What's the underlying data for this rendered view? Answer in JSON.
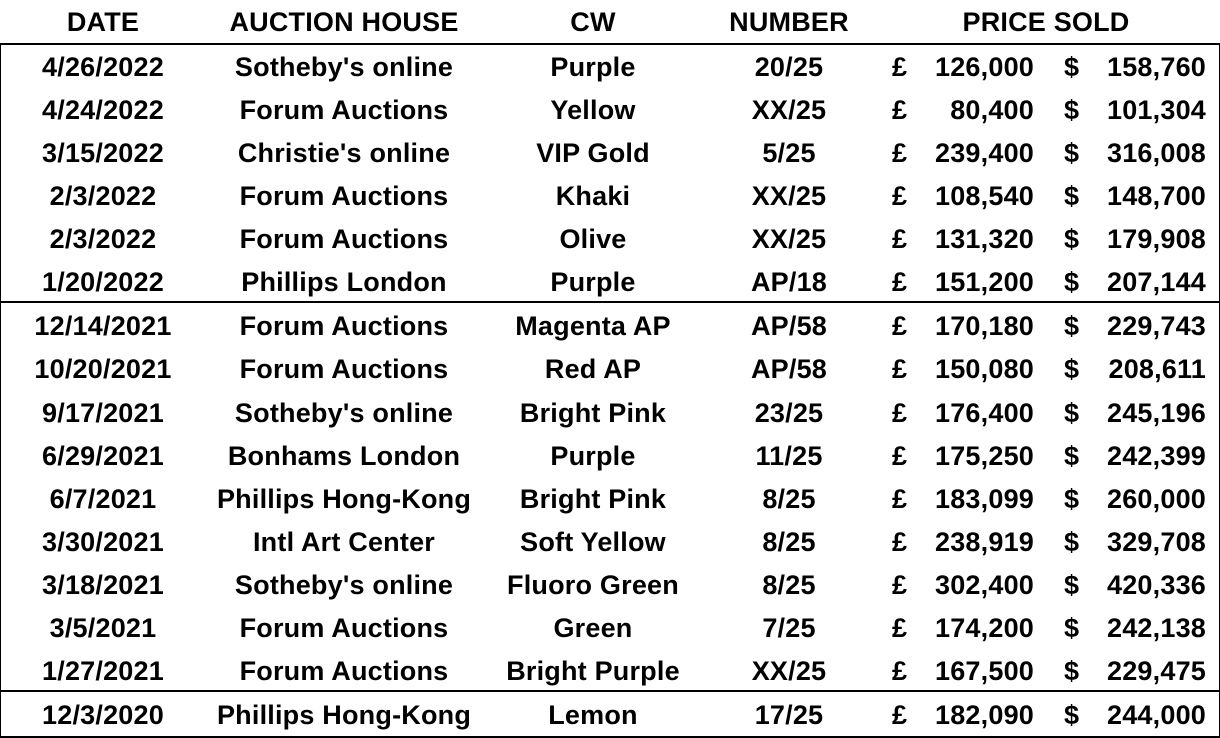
{
  "headers": {
    "date": "DATE",
    "auction_house": "AUCTION HOUSE",
    "cw": "CW",
    "number": "NUMBER",
    "price_sold": "PRICE SOLD"
  },
  "currency": {
    "gbp": "£",
    "usd": "$"
  },
  "rows": [
    {
      "date": "4/26/2022",
      "house": "Sotheby's online",
      "cw": "Purple",
      "number": "20/25",
      "gbp": "126,000",
      "usd": "158,760"
    },
    {
      "date": "4/24/2022",
      "house": "Forum Auctions",
      "cw": "Yellow",
      "number": "XX/25",
      "gbp": "80,400",
      "usd": "101,304"
    },
    {
      "date": "3/15/2022",
      "house": "Christie's online",
      "cw": "VIP Gold",
      "number": "5/25",
      "gbp": "239,400",
      "usd": "316,008"
    },
    {
      "date": "2/3/2022",
      "house": "Forum Auctions",
      "cw": "Khaki",
      "number": "XX/25",
      "gbp": "108,540",
      "usd": "148,700"
    },
    {
      "date": "2/3/2022",
      "house": "Forum Auctions",
      "cw": "Olive",
      "number": "XX/25",
      "gbp": "131,320",
      "usd": "179,908"
    },
    {
      "date": "1/20/2022",
      "house": "Phillips London",
      "cw": "Purple",
      "number": "AP/18",
      "gbp": "151,200",
      "usd": "207,144"
    },
    {
      "date": "12/14/2021",
      "house": "Forum Auctions",
      "cw": "Magenta AP",
      "number": "AP/58",
      "gbp": "170,180",
      "usd": "229,743"
    },
    {
      "date": "10/20/2021",
      "house": "Forum Auctions",
      "cw": "Red AP",
      "number": "AP/58",
      "gbp": "150,080",
      "usd": "208,611"
    },
    {
      "date": "9/17/2021",
      "house": "Sotheby's online",
      "cw": "Bright Pink",
      "number": "23/25",
      "gbp": "176,400",
      "usd": "245,196"
    },
    {
      "date": "6/29/2021",
      "house": "Bonhams London",
      "cw": "Purple",
      "number": "11/25",
      "gbp": "175,250",
      "usd": "242,399"
    },
    {
      "date": "6/7/2021",
      "house": "Phillips Hong-Kong",
      "cw": "Bright Pink",
      "number": "8/25",
      "gbp": "183,099",
      "usd": "260,000"
    },
    {
      "date": "3/30/2021",
      "house": "Intl Art Center",
      "cw": "Soft Yellow",
      "number": "8/25",
      "gbp": "238,919",
      "usd": "329,708"
    },
    {
      "date": "3/18/2021",
      "house": "Sotheby's online",
      "cw": "Fluoro Green",
      "number": "8/25",
      "gbp": "302,400",
      "usd": "420,336"
    },
    {
      "date": "3/5/2021",
      "house": "Forum Auctions",
      "cw": "Green",
      "number": "7/25",
      "gbp": "174,200",
      "usd": "242,138"
    },
    {
      "date": "1/27/2021",
      "house": "Forum Auctions",
      "cw": "Bright Purple",
      "number": "XX/25",
      "gbp": "167,500",
      "usd": "229,475"
    },
    {
      "date": "12/3/2020",
      "house": "Phillips Hong-Kong",
      "cw": "Lemon",
      "number": "17/25",
      "gbp": "182,090",
      "usd": "244,000"
    }
  ]
}
